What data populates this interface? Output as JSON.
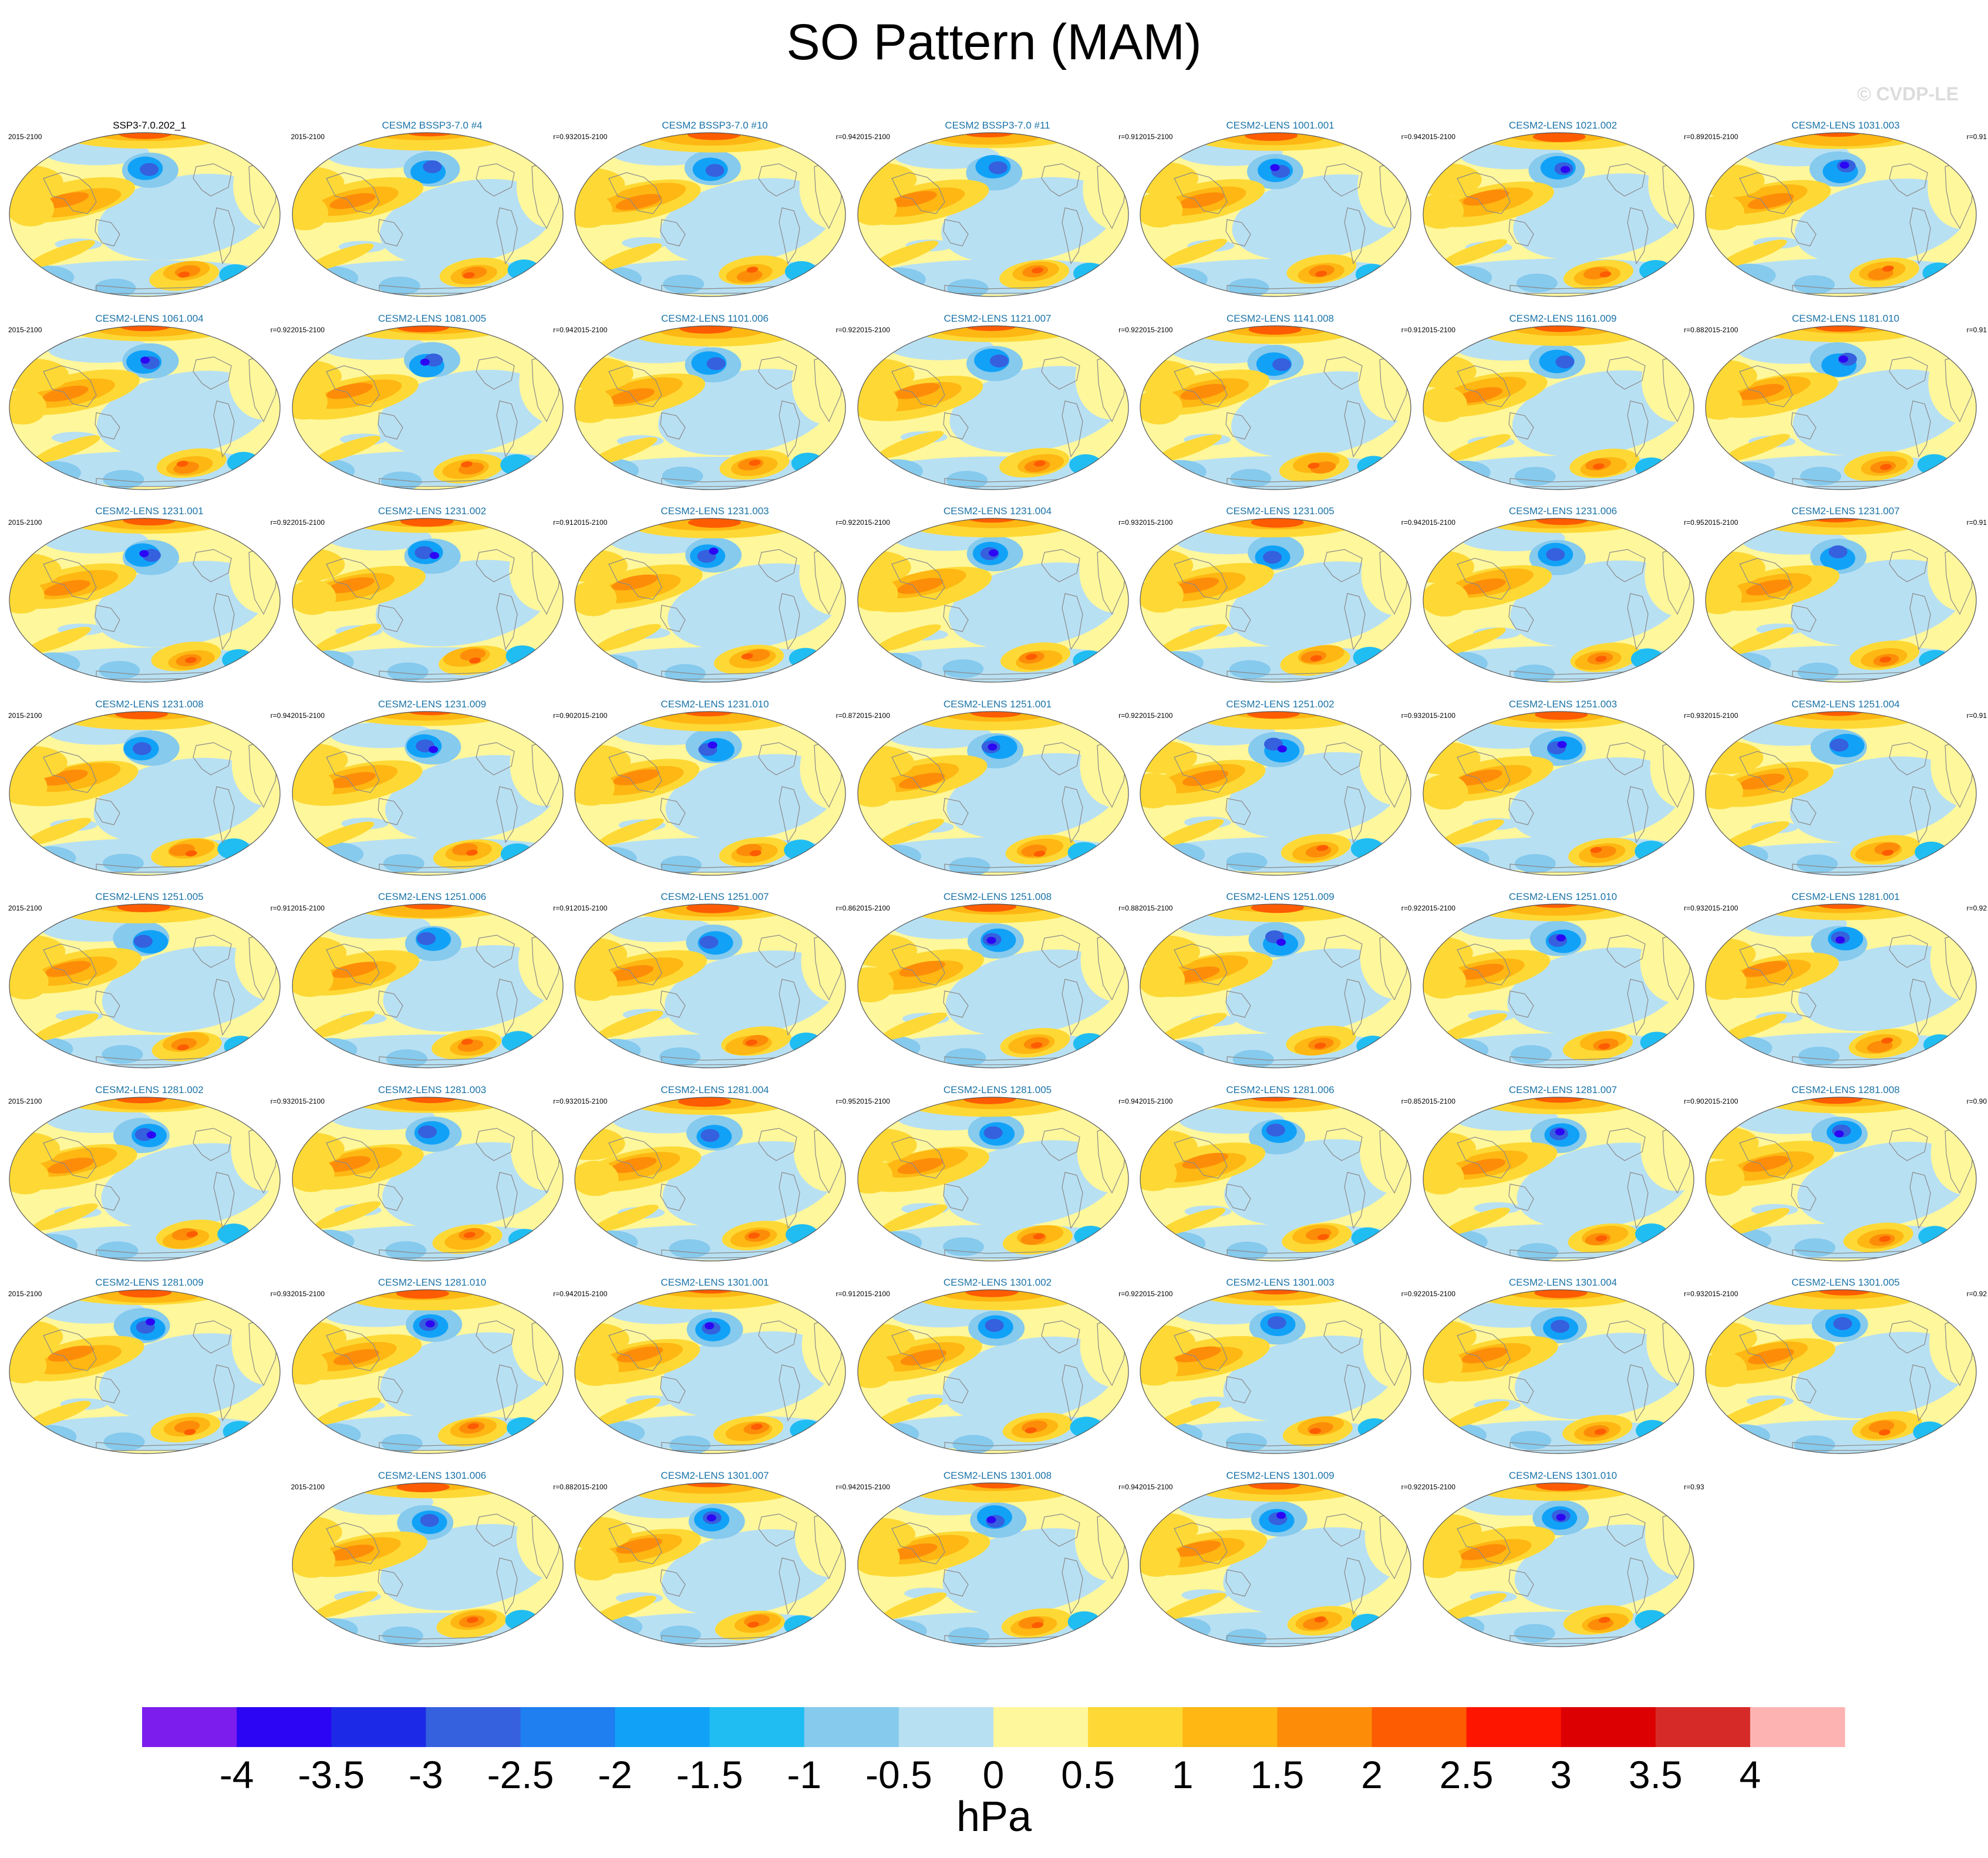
{
  "title": "SO Pattern (MAM)",
  "watermark": "© CVDP-LE",
  "chart_data": {
    "type": "heatmap",
    "title": "SO Pattern (MAM)",
    "map_projection": "Robinson (Pacific-centred global map)",
    "period": "2015-2100",
    "panels": [
      {
        "name": "SSP3-7.0.202_1",
        "years": "2015-2100",
        "r": "",
        "reference": true
      },
      {
        "name": "CESM2 BSSP3-7.0 #4",
        "years": "2015-2100",
        "r": "r=0.93"
      },
      {
        "name": "CESM2 BSSP3-7.0 #10",
        "years": "2015-2100",
        "r": "r=0.94"
      },
      {
        "name": "CESM2 BSSP3-7.0 #11",
        "years": "2015-2100",
        "r": "r=0.91"
      },
      {
        "name": "CESM2-LENS 1001.001",
        "years": "2015-2100",
        "r": "r=0.94"
      },
      {
        "name": "CESM2-LENS 1021.002",
        "years": "2015-2100",
        "r": "r=0.89"
      },
      {
        "name": "CESM2-LENS 1031.003",
        "years": "2015-2100",
        "r": "r=0.91"
      },
      {
        "name": "CESM2-LENS 1061.004",
        "years": "2015-2100",
        "r": "r=0.92"
      },
      {
        "name": "CESM2-LENS 1081.005",
        "years": "2015-2100",
        "r": "r=0.94"
      },
      {
        "name": "CESM2-LENS 1101.006",
        "years": "2015-2100",
        "r": "r=0.92"
      },
      {
        "name": "CESM2-LENS 1121.007",
        "years": "2015-2100",
        "r": "r=0.92"
      },
      {
        "name": "CESM2-LENS 1141.008",
        "years": "2015-2100",
        "r": "r=0.91"
      },
      {
        "name": "CESM2-LENS 1161.009",
        "years": "2015-2100",
        "r": "r=0.88"
      },
      {
        "name": "CESM2-LENS 1181.010",
        "years": "2015-2100",
        "r": "r=0.91"
      },
      {
        "name": "CESM2-LENS 1231.001",
        "years": "2015-2100",
        "r": "r=0.92"
      },
      {
        "name": "CESM2-LENS 1231.002",
        "years": "2015-2100",
        "r": "r=0.91"
      },
      {
        "name": "CESM2-LENS 1231.003",
        "years": "2015-2100",
        "r": "r=0.92"
      },
      {
        "name": "CESM2-LENS 1231.004",
        "years": "2015-2100",
        "r": "r=0.93"
      },
      {
        "name": "CESM2-LENS 1231.005",
        "years": "2015-2100",
        "r": "r=0.94"
      },
      {
        "name": "CESM2-LENS 1231.006",
        "years": "2015-2100",
        "r": "r=0.95"
      },
      {
        "name": "CESM2-LENS 1231.007",
        "years": "2015-2100",
        "r": "r=0.91"
      },
      {
        "name": "CESM2-LENS 1231.008",
        "years": "2015-2100",
        "r": "r=0.94"
      },
      {
        "name": "CESM2-LENS 1231.009",
        "years": "2015-2100",
        "r": "r=0.90"
      },
      {
        "name": "CESM2-LENS 1231.010",
        "years": "2015-2100",
        "r": "r=0.87"
      },
      {
        "name": "CESM2-LENS 1251.001",
        "years": "2015-2100",
        "r": "r=0.92"
      },
      {
        "name": "CESM2-LENS 1251.002",
        "years": "2015-2100",
        "r": "r=0.93"
      },
      {
        "name": "CESM2-LENS 1251.003",
        "years": "2015-2100",
        "r": "r=0.93"
      },
      {
        "name": "CESM2-LENS 1251.004",
        "years": "2015-2100",
        "r": "r=0.91"
      },
      {
        "name": "CESM2-LENS 1251.005",
        "years": "2015-2100",
        "r": "r=0.91"
      },
      {
        "name": "CESM2-LENS 1251.006",
        "years": "2015-2100",
        "r": "r=0.91"
      },
      {
        "name": "CESM2-LENS 1251.007",
        "years": "2015-2100",
        "r": "r=0.86"
      },
      {
        "name": "CESM2-LENS 1251.008",
        "years": "2015-2100",
        "r": "r=0.88"
      },
      {
        "name": "CESM2-LENS 1251.009",
        "years": "2015-2100",
        "r": "r=0.92"
      },
      {
        "name": "CESM2-LENS 1251.010",
        "years": "2015-2100",
        "r": "r=0.93"
      },
      {
        "name": "CESM2-LENS 1281.001",
        "years": "2015-2100",
        "r": "r=0.92"
      },
      {
        "name": "CESM2-LENS 1281.002",
        "years": "2015-2100",
        "r": "r=0.93"
      },
      {
        "name": "CESM2-LENS 1281.003",
        "years": "2015-2100",
        "r": "r=0.93"
      },
      {
        "name": "CESM2-LENS 1281.004",
        "years": "2015-2100",
        "r": "r=0.95"
      },
      {
        "name": "CESM2-LENS 1281.005",
        "years": "2015-2100",
        "r": "r=0.94"
      },
      {
        "name": "CESM2-LENS 1281.006",
        "years": "2015-2100",
        "r": "r=0.85"
      },
      {
        "name": "CESM2-LENS 1281.007",
        "years": "2015-2100",
        "r": "r=0.90"
      },
      {
        "name": "CESM2-LENS 1281.008",
        "years": "2015-2100",
        "r": "r=0.90"
      },
      {
        "name": "CESM2-LENS 1281.009",
        "years": "2015-2100",
        "r": "r=0.93"
      },
      {
        "name": "CESM2-LENS 1281.010",
        "years": "2015-2100",
        "r": "r=0.94"
      },
      {
        "name": "CESM2-LENS 1301.001",
        "years": "2015-2100",
        "r": "r=0.91"
      },
      {
        "name": "CESM2-LENS 1301.002",
        "years": "2015-2100",
        "r": "r=0.92"
      },
      {
        "name": "CESM2-LENS 1301.003",
        "years": "2015-2100",
        "r": "r=0.92"
      },
      {
        "name": "CESM2-LENS 1301.004",
        "years": "2015-2100",
        "r": "r=0.93"
      },
      {
        "name": "CESM2-LENS 1301.005",
        "years": "2015-2100",
        "r": "r=0.92"
      },
      {
        "name": "CESM2-LENS 1301.006",
        "years": "2015-2100",
        "r": "r=0.88"
      },
      {
        "name": "CESM2-LENS 1301.007",
        "years": "2015-2100",
        "r": "r=0.94"
      },
      {
        "name": "CESM2-LENS 1301.008",
        "years": "2015-2100",
        "r": "r=0.94"
      },
      {
        "name": "CESM2-LENS 1301.009",
        "years": "2015-2100",
        "r": "r=0.92"
      },
      {
        "name": "CESM2-LENS 1301.010",
        "years": "2015-2100",
        "r": "r=0.93"
      }
    ],
    "colorbar": {
      "unit": "hPa",
      "tick_labels": [
        "-4",
        "-3.5",
        "-3",
        "-2.5",
        "-2",
        "-1.5",
        "-1",
        "-0.5",
        "0",
        "0.5",
        "1",
        "1.5",
        "2",
        "2.5",
        "3",
        "3.5",
        "4"
      ],
      "colors": [
        "#7c1ded",
        "#2c05f4",
        "#1c2ae8",
        "#3560de",
        "#1f7ef0",
        "#11a2f8",
        "#20bdf2",
        "#86caed",
        "#b8e0f3",
        "#fef79c",
        "#fed935",
        "#feb713",
        "#fd8d09",
        "#fd5c02",
        "#fe1500",
        "#dd0002",
        "#d62a29",
        "#feb3b3"
      ]
    }
  }
}
